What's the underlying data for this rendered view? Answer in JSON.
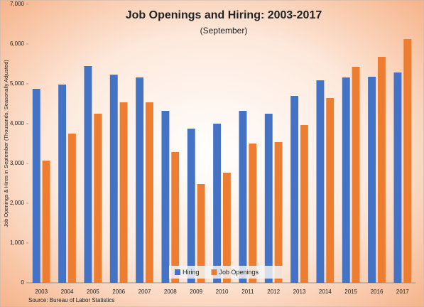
{
  "chart_data": {
    "type": "bar",
    "title": "Job Openings and Hiring:  2003-2017",
    "subtitle": "(September)",
    "y_label": "Job Openings & Hires in September (Thousands, Seasonally Adjusted)",
    "source": "Source: Bureau of Labor Statistics",
    "categories": [
      "2003",
      "2004",
      "2005",
      "2006",
      "2007",
      "2008",
      "2009",
      "2010",
      "2011",
      "2012",
      "2013",
      "2014",
      "2015",
      "2016",
      "2017"
    ],
    "series": [
      {
        "name": "Hiring",
        "color": "#4472c4",
        "values": [
          4875,
          4982,
          5446,
          5232,
          5161,
          4321,
          3875,
          4000,
          4321,
          4250,
          4696,
          5089,
          5161,
          5179,
          5286
        ]
      },
      {
        "name": "Job Openings",
        "color": "#ed7d31",
        "values": [
          3071,
          3750,
          4250,
          4536,
          4536,
          3286,
          2482,
          2768,
          3500,
          3536,
          3964,
          4643,
          5429,
          5679,
          6125
        ]
      }
    ],
    "ylim": [
      0,
      7000
    ],
    "yticks": [
      0,
      {
        "value": 1000,
        "label": "1,000"
      },
      {
        "value": 2000,
        "label": "2,000"
      },
      {
        "value": 3000,
        "label": "3,000"
      },
      {
        "value": 4000,
        "label": "4,000"
      },
      {
        "value": 5000,
        "label": "5,000"
      },
      {
        "value": 6000,
        "label": "6,000"
      },
      {
        "value": 7000,
        "label": "7,000"
      }
    ],
    "legend": "bottom"
  }
}
